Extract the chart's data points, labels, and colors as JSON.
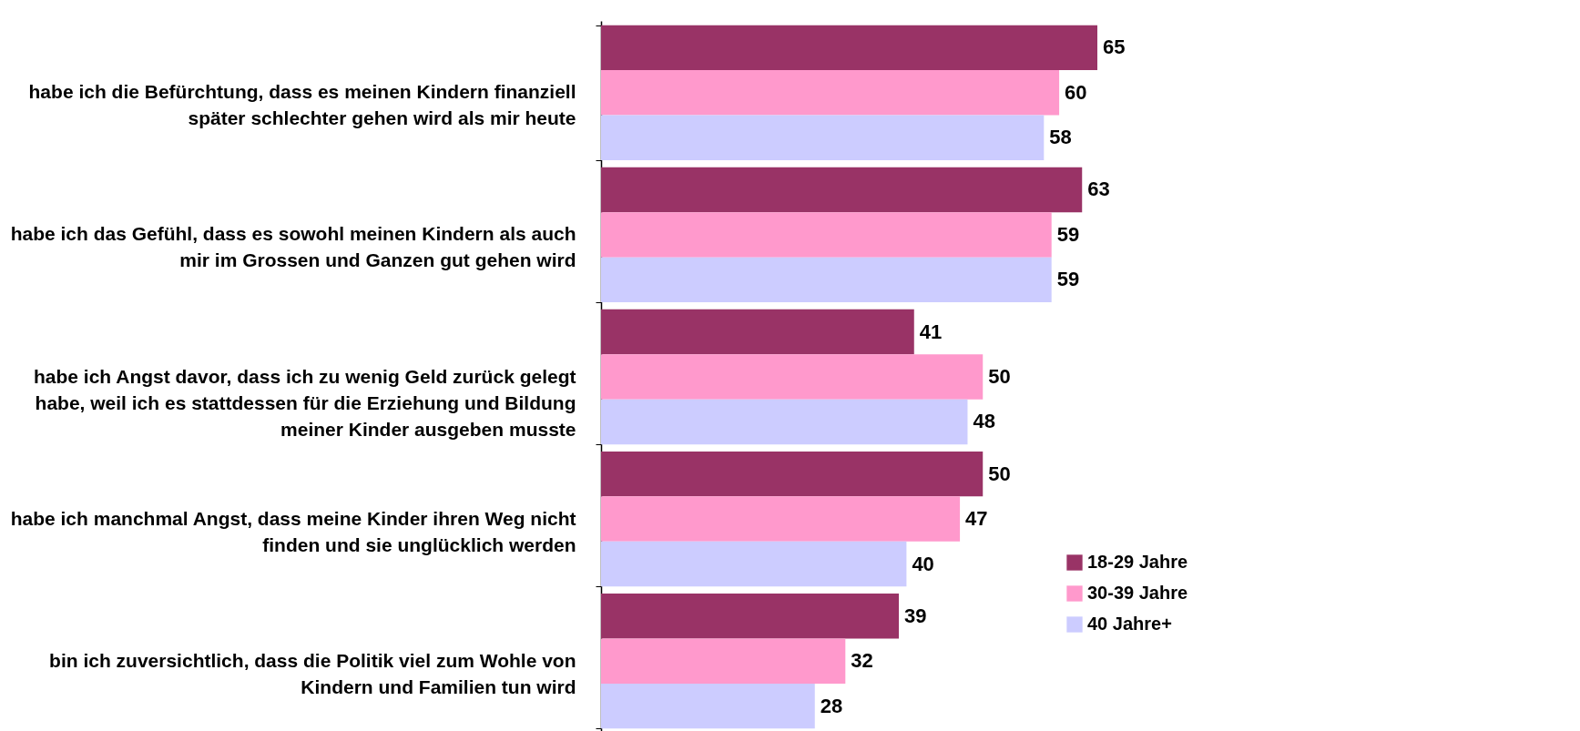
{
  "chart_data": {
    "type": "bar",
    "orientation": "horizontal",
    "data_labels": true,
    "legend": "bottom right",
    "grid": false,
    "categories": [
      "habe ich die Befürchtung, dass es meinen Kindern finanziell später schlechter gehen wird als mir heute",
      "habe ich das Gefühl, dass es sowohl meinen Kindern als auch mir im Grossen und Ganzen gut gehen wird",
      "habe ich Angst davor, dass ich zu wenig Geld zurück gelegt habe, weil ich es stattdessen für die Erziehung und Bildung meiner Kinder ausgeben musste",
      "habe ich manchmal Angst, dass meine Kinder ihren Weg nicht finden und sie unglücklich werden",
      "bin ich zuversichtlich, dass die Politik viel zum Wohle von Kindern und Familien tun wird"
    ],
    "series": [
      {
        "name": "18-29 Jahre",
        "color": "#993366",
        "values": [
          65,
          63,
          41,
          50,
          39
        ]
      },
      {
        "name": "30-39 Jahre",
        "color": "#ff99cc",
        "values": [
          60,
          59,
          50,
          47,
          32
        ]
      },
      {
        "name": "40 Jahre+",
        "color": "#ccccff",
        "values": [
          58,
          59,
          48,
          40,
          28
        ]
      }
    ]
  }
}
